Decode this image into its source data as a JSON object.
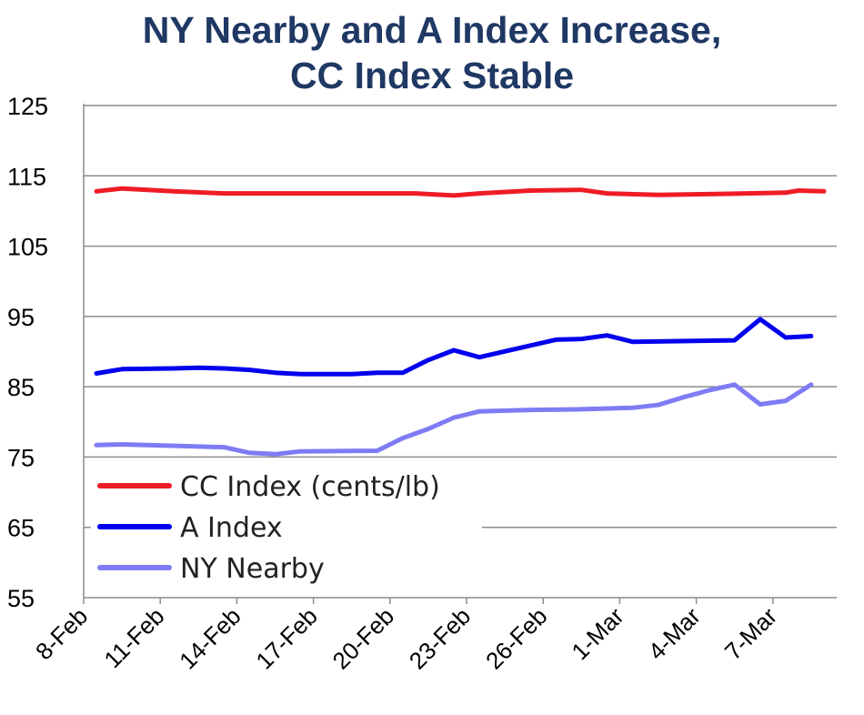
{
  "chart_data": {
    "type": "line",
    "title_line1": "NY Nearby and A Index Increase,",
    "title_line2": "CC Index Stable",
    "ylim": [
      55,
      125
    ],
    "yticks": [
      55,
      65,
      75,
      85,
      95,
      105,
      115,
      125
    ],
    "xlim": [
      0,
      29.5
    ],
    "xtick_labels": [
      {
        "x": 0,
        "label": "8-Feb"
      },
      {
        "x": 3,
        "label": "11-Feb"
      },
      {
        "x": 6,
        "label": "14-Feb"
      },
      {
        "x": 9,
        "label": "17-Feb"
      },
      {
        "x": 12,
        "label": "20-Feb"
      },
      {
        "x": 15,
        "label": "23-Feb"
      },
      {
        "x": 18,
        "label": "26-Feb"
      },
      {
        "x": 21,
        "label": "1-Mar"
      },
      {
        "x": 24,
        "label": "4-Mar"
      },
      {
        "x": 27,
        "label": "7-Mar"
      }
    ],
    "grid": "horizontal",
    "legend_position": "bottom-left",
    "series": [
      {
        "name": "CC Index (cents/lb)",
        "color": "#ee1c25",
        "points": [
          [
            0.5,
            112.8
          ],
          [
            1.5,
            113.2
          ],
          [
            2.5,
            113.0
          ],
          [
            3.5,
            112.8
          ],
          [
            5.5,
            112.5
          ],
          [
            7.5,
            112.5
          ],
          [
            9.5,
            112.5
          ],
          [
            11.5,
            112.5
          ],
          [
            13.0,
            112.5
          ],
          [
            14.5,
            112.2
          ],
          [
            15.5,
            112.5
          ],
          [
            17.5,
            112.9
          ],
          [
            19.5,
            113.0
          ],
          [
            20.5,
            112.5
          ],
          [
            22.5,
            112.3
          ],
          [
            24.5,
            112.4
          ],
          [
            26.0,
            112.5
          ],
          [
            27.5,
            112.6
          ],
          [
            28.0,
            112.9
          ],
          [
            29.0,
            112.8
          ]
        ]
      },
      {
        "name": "A Index",
        "color": "#0000ee",
        "points": [
          [
            0.5,
            86.9
          ],
          [
            1.5,
            87.5
          ],
          [
            3.5,
            87.6
          ],
          [
            4.5,
            87.7
          ],
          [
            5.5,
            87.6
          ],
          [
            6.5,
            87.4
          ],
          [
            7.5,
            87.0
          ],
          [
            8.5,
            86.8
          ],
          [
            10.5,
            86.8
          ],
          [
            11.5,
            87.0
          ],
          [
            12.5,
            87.0
          ],
          [
            13.5,
            88.8
          ],
          [
            14.5,
            90.2
          ],
          [
            15.5,
            89.2
          ],
          [
            18.5,
            91.7
          ],
          [
            19.5,
            91.8
          ],
          [
            20.5,
            92.3
          ],
          [
            21.5,
            91.4
          ],
          [
            25.5,
            91.6
          ],
          [
            26.5,
            94.6
          ],
          [
            27.5,
            92.0
          ],
          [
            28.5,
            92.2
          ]
        ]
      },
      {
        "name": "NY Nearby",
        "color": "#7e7cf4",
        "points": [
          [
            0.5,
            76.7
          ],
          [
            1.5,
            76.8
          ],
          [
            5.5,
            76.4
          ],
          [
            6.5,
            75.6
          ],
          [
            7.5,
            75.4
          ],
          [
            8.5,
            75.8
          ],
          [
            11.5,
            75.9
          ],
          [
            12.5,
            77.7
          ],
          [
            13.5,
            79.0
          ],
          [
            14.5,
            80.6
          ],
          [
            15.5,
            81.5
          ],
          [
            17.5,
            81.7
          ],
          [
            19.5,
            81.8
          ],
          [
            21.5,
            82.0
          ],
          [
            22.5,
            82.4
          ],
          [
            23.5,
            83.5
          ],
          [
            24.5,
            84.5
          ],
          [
            25.5,
            85.3
          ],
          [
            26.5,
            82.5
          ],
          [
            27.5,
            83.0
          ],
          [
            28.5,
            85.3
          ]
        ]
      }
    ]
  }
}
